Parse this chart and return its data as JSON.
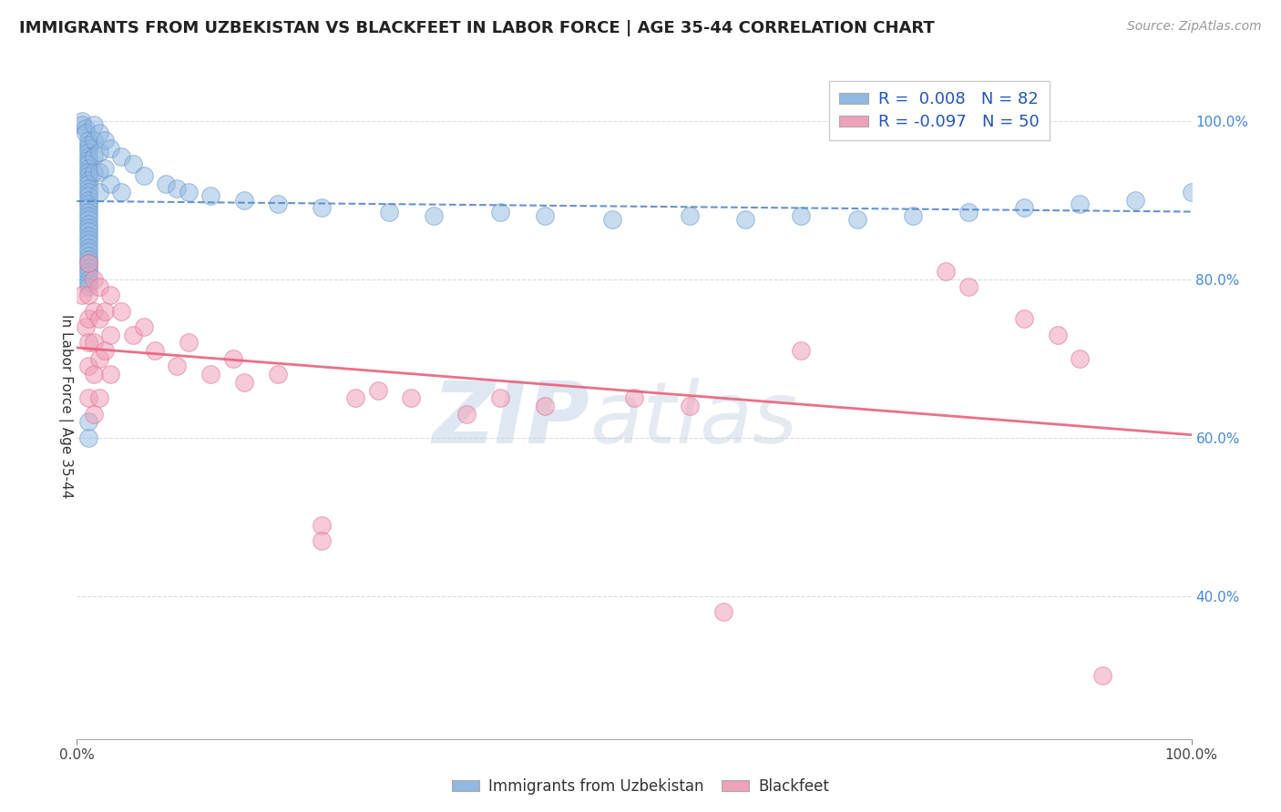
{
  "title": "IMMIGRANTS FROM UZBEKISTAN VS BLACKFEET IN LABOR FORCE | AGE 35-44 CORRELATION CHART",
  "source_text": "Source: ZipAtlas.com",
  "ylabel": "In Labor Force | Age 35-44",
  "xlim": [
    0.0,
    1.0
  ],
  "ylim": [
    0.22,
    1.06
  ],
  "yticks": [
    0.4,
    0.6,
    0.8,
    1.0
  ],
  "ytick_labels": [
    "40.0%",
    "60.0%",
    "80.0%",
    "100.0%"
  ],
  "legend_bottom": [
    "Immigrants from Uzbekistan",
    "Blackfeet"
  ],
  "uzbekistan_color": "#90b8e0",
  "blackfeet_color": "#f0a0b8",
  "uzbekistan_edge_color": "#6090c8",
  "blackfeet_edge_color": "#e07090",
  "uzbekistan_line_color": "#5588cc",
  "blackfeet_line_color": "#e8607a",
  "watermark_zip_color": "#c0d0e8",
  "watermark_atlas_color": "#c0cce0",
  "background_color": "#ffffff",
  "grid_color": "#d8d8d8",
  "r_uz": 0.008,
  "n_uz": 82,
  "r_bf": -0.097,
  "n_bf": 50,
  "uzbekistan_points": [
    [
      0.005,
      1.0
    ],
    [
      0.005,
      0.995
    ],
    [
      0.008,
      0.99
    ],
    [
      0.008,
      0.985
    ],
    [
      0.01,
      0.975
    ],
    [
      0.01,
      0.97
    ],
    [
      0.01,
      0.965
    ],
    [
      0.01,
      0.96
    ],
    [
      0.01,
      0.955
    ],
    [
      0.01,
      0.95
    ],
    [
      0.01,
      0.945
    ],
    [
      0.01,
      0.94
    ],
    [
      0.01,
      0.935
    ],
    [
      0.01,
      0.93
    ],
    [
      0.01,
      0.925
    ],
    [
      0.01,
      0.92
    ],
    [
      0.01,
      0.915
    ],
    [
      0.01,
      0.91
    ],
    [
      0.01,
      0.905
    ],
    [
      0.01,
      0.9
    ],
    [
      0.01,
      0.895
    ],
    [
      0.01,
      0.89
    ],
    [
      0.01,
      0.885
    ],
    [
      0.01,
      0.88
    ],
    [
      0.01,
      0.875
    ],
    [
      0.01,
      0.87
    ],
    [
      0.01,
      0.865
    ],
    [
      0.01,
      0.86
    ],
    [
      0.01,
      0.855
    ],
    [
      0.01,
      0.85
    ],
    [
      0.01,
      0.845
    ],
    [
      0.01,
      0.84
    ],
    [
      0.01,
      0.835
    ],
    [
      0.01,
      0.83
    ],
    [
      0.01,
      0.825
    ],
    [
      0.01,
      0.82
    ],
    [
      0.01,
      0.815
    ],
    [
      0.01,
      0.81
    ],
    [
      0.01,
      0.805
    ],
    [
      0.01,
      0.8
    ],
    [
      0.01,
      0.795
    ],
    [
      0.01,
      0.79
    ],
    [
      0.015,
      0.995
    ],
    [
      0.015,
      0.975
    ],
    [
      0.015,
      0.955
    ],
    [
      0.015,
      0.935
    ],
    [
      0.02,
      0.985
    ],
    [
      0.02,
      0.96
    ],
    [
      0.02,
      0.935
    ],
    [
      0.02,
      0.91
    ],
    [
      0.025,
      0.975
    ],
    [
      0.025,
      0.94
    ],
    [
      0.03,
      0.965
    ],
    [
      0.03,
      0.92
    ],
    [
      0.04,
      0.955
    ],
    [
      0.04,
      0.91
    ],
    [
      0.05,
      0.945
    ],
    [
      0.06,
      0.93
    ],
    [
      0.08,
      0.92
    ],
    [
      0.09,
      0.915
    ],
    [
      0.1,
      0.91
    ],
    [
      0.12,
      0.905
    ],
    [
      0.15,
      0.9
    ],
    [
      0.18,
      0.895
    ],
    [
      0.22,
      0.89
    ],
    [
      0.28,
      0.885
    ],
    [
      0.32,
      0.88
    ],
    [
      0.38,
      0.885
    ],
    [
      0.42,
      0.88
    ],
    [
      0.48,
      0.875
    ],
    [
      0.55,
      0.88
    ],
    [
      0.6,
      0.875
    ],
    [
      0.65,
      0.88
    ],
    [
      0.7,
      0.875
    ],
    [
      0.75,
      0.88
    ],
    [
      0.8,
      0.885
    ],
    [
      0.85,
      0.89
    ],
    [
      0.9,
      0.895
    ],
    [
      0.95,
      0.9
    ],
    [
      1.0,
      0.91
    ],
    [
      0.01,
      0.62
    ],
    [
      0.01,
      0.6
    ]
  ],
  "blackfeet_points": [
    [
      0.005,
      0.78
    ],
    [
      0.008,
      0.74
    ],
    [
      0.01,
      0.82
    ],
    [
      0.01,
      0.78
    ],
    [
      0.01,
      0.75
    ],
    [
      0.01,
      0.72
    ],
    [
      0.01,
      0.69
    ],
    [
      0.01,
      0.65
    ],
    [
      0.015,
      0.8
    ],
    [
      0.015,
      0.76
    ],
    [
      0.015,
      0.72
    ],
    [
      0.015,
      0.68
    ],
    [
      0.015,
      0.63
    ],
    [
      0.02,
      0.79
    ],
    [
      0.02,
      0.75
    ],
    [
      0.02,
      0.7
    ],
    [
      0.02,
      0.65
    ],
    [
      0.025,
      0.76
    ],
    [
      0.025,
      0.71
    ],
    [
      0.03,
      0.78
    ],
    [
      0.03,
      0.73
    ],
    [
      0.03,
      0.68
    ],
    [
      0.04,
      0.76
    ],
    [
      0.05,
      0.73
    ],
    [
      0.06,
      0.74
    ],
    [
      0.07,
      0.71
    ],
    [
      0.09,
      0.69
    ],
    [
      0.1,
      0.72
    ],
    [
      0.12,
      0.68
    ],
    [
      0.14,
      0.7
    ],
    [
      0.15,
      0.67
    ],
    [
      0.18,
      0.68
    ],
    [
      0.22,
      0.49
    ],
    [
      0.22,
      0.47
    ],
    [
      0.25,
      0.65
    ],
    [
      0.27,
      0.66
    ],
    [
      0.3,
      0.65
    ],
    [
      0.35,
      0.63
    ],
    [
      0.38,
      0.65
    ],
    [
      0.42,
      0.64
    ],
    [
      0.5,
      0.65
    ],
    [
      0.55,
      0.64
    ],
    [
      0.58,
      0.38
    ],
    [
      0.65,
      0.71
    ],
    [
      0.78,
      0.81
    ],
    [
      0.8,
      0.79
    ],
    [
      0.85,
      0.75
    ],
    [
      0.88,
      0.73
    ],
    [
      0.9,
      0.7
    ],
    [
      0.92,
      0.3
    ]
  ]
}
